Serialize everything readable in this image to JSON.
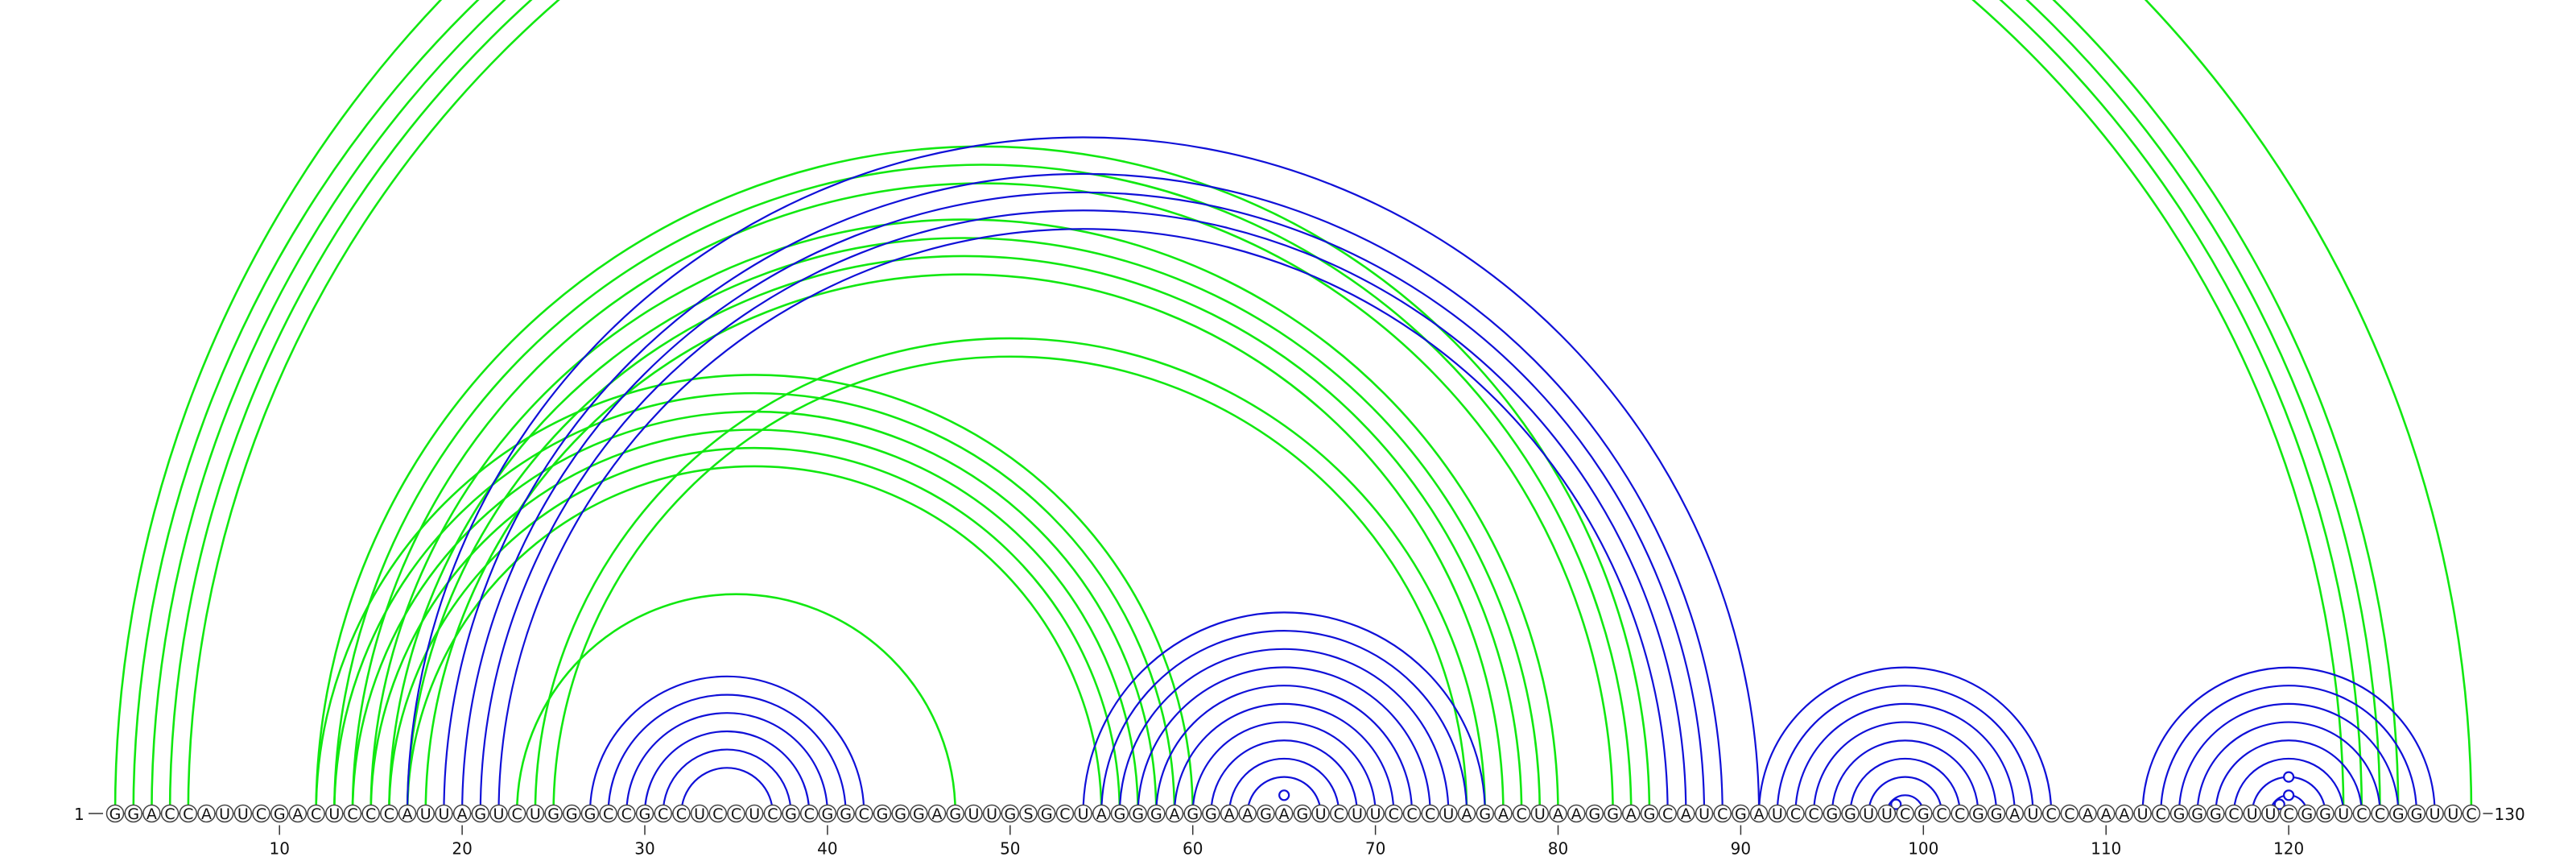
{
  "sequence": "GGACCAUUCGACUCCCAUUAGUCUGGGCCGCCUCCUCGCGGCGGGAGUUGSGCUAGGGAGGAAGAGUCUUCCCUAGACUAAGGAGCAUCGAUCCGGUUCGCCGGAUCCAAAUCGGGCUUCGGUCCGGUUC",
  "start_label": "1",
  "end_label": "130",
  "ticks": [
    10,
    20,
    30,
    40,
    50,
    60,
    70,
    80,
    90,
    100,
    110,
    120
  ],
  "colors": {
    "structure_a": "#1010d8",
    "structure_b": "#11e811"
  },
  "pairs_blue": [
    [
      27,
      42
    ],
    [
      28,
      41
    ],
    [
      29,
      40
    ],
    [
      30,
      39
    ],
    [
      31,
      38
    ],
    [
      32,
      37
    ],
    [
      17,
      91
    ],
    [
      19,
      89
    ],
    [
      20,
      88
    ],
    [
      21,
      87
    ],
    [
      22,
      86
    ],
    [
      54,
      76
    ],
    [
      55,
      75
    ],
    [
      56,
      74
    ],
    [
      57,
      73
    ],
    [
      58,
      72
    ],
    [
      59,
      71
    ],
    [
      60,
      70
    ],
    [
      61,
      69
    ],
    [
      62,
      68
    ],
    [
      63,
      67
    ],
    [
      91,
      107
    ],
    [
      92,
      106
    ],
    [
      93,
      105
    ],
    [
      94,
      104
    ],
    [
      95,
      103
    ],
    [
      96,
      102
    ],
    [
      97,
      101
    ],
    [
      98,
      100
    ],
    [
      112,
      128
    ],
    [
      113,
      127
    ],
    [
      114,
      126
    ],
    [
      115,
      125
    ],
    [
      116,
      124
    ],
    [
      117,
      123
    ],
    [
      118,
      122
    ],
    [
      119,
      121
    ]
  ],
  "pairs_green": [
    [
      1,
      130
    ],
    [
      2,
      126
    ],
    [
      3,
      125
    ],
    [
      4,
      124
    ],
    [
      5,
      123
    ],
    [
      12,
      85
    ],
    [
      13,
      84
    ],
    [
      14,
      83
    ],
    [
      15,
      80
    ],
    [
      16,
      79
    ],
    [
      17,
      78
    ],
    [
      18,
      77
    ],
    [
      12,
      60
    ],
    [
      13,
      59
    ],
    [
      14,
      58
    ],
    [
      15,
      57
    ],
    [
      16,
      56
    ],
    [
      17,
      55
    ],
    [
      24,
      76
    ],
    [
      25,
      75
    ],
    [
      23,
      47
    ]
  ],
  "markers_blue": [
    [
      64,
      66
    ],
    [
      98,
      99
    ],
    [
      119,
      120
    ],
    [
      119,
      121
    ],
    [
      118,
      122
    ]
  ]
}
